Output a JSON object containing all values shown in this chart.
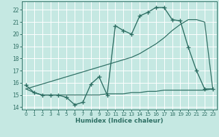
{
  "xlabel": "Humidex (Indice chaleur)",
  "bg_color": "#c5e8e2",
  "grid_color": "#ffffff",
  "line_color": "#2d6e63",
  "xlim": [
    -0.5,
    23.5
  ],
  "ylim": [
    13.8,
    22.7
  ],
  "yticks": [
    14,
    15,
    16,
    17,
    18,
    19,
    20,
    21,
    22
  ],
  "xticks": [
    0,
    1,
    2,
    3,
    4,
    5,
    6,
    7,
    8,
    9,
    10,
    11,
    12,
    13,
    14,
    15,
    16,
    17,
    18,
    19,
    20,
    21,
    22,
    23
  ],
  "main_x": [
    0,
    1,
    2,
    3,
    4,
    5,
    6,
    7,
    8,
    9,
    10,
    11,
    12,
    13,
    14,
    15,
    16,
    17,
    18,
    19,
    20,
    21,
    22,
    23
  ],
  "main_y": [
    15.8,
    15.2,
    15.0,
    15.0,
    15.0,
    14.8,
    14.2,
    14.4,
    15.9,
    16.5,
    15.0,
    20.7,
    20.3,
    20.0,
    21.5,
    21.8,
    22.2,
    22.2,
    21.2,
    21.1,
    18.9,
    17.0,
    15.5,
    15.5
  ],
  "trend_x": [
    0,
    1,
    2,
    3,
    4,
    5,
    6,
    7,
    8,
    9,
    10,
    11,
    12,
    13,
    14,
    15,
    16,
    17,
    18,
    19,
    20,
    21,
    22,
    23
  ],
  "trend_y": [
    15.5,
    15.7,
    15.9,
    16.1,
    16.3,
    16.5,
    16.7,
    16.9,
    17.1,
    17.3,
    17.5,
    17.7,
    17.9,
    18.1,
    18.4,
    18.8,
    19.2,
    19.7,
    20.3,
    20.8,
    21.2,
    21.2,
    21.0,
    15.5
  ],
  "flat_x": [
    0,
    1,
    2,
    3,
    4,
    5,
    6,
    7,
    8,
    9,
    10,
    11,
    12,
    13,
    14,
    15,
    16,
    17,
    18,
    19,
    20,
    21,
    22,
    23
  ],
  "flat_y": [
    15.5,
    15.2,
    15.0,
    15.0,
    15.0,
    15.0,
    15.0,
    15.0,
    15.0,
    15.0,
    15.1,
    15.1,
    15.1,
    15.2,
    15.2,
    15.3,
    15.3,
    15.4,
    15.4,
    15.4,
    15.4,
    15.4,
    15.4,
    15.5
  ]
}
